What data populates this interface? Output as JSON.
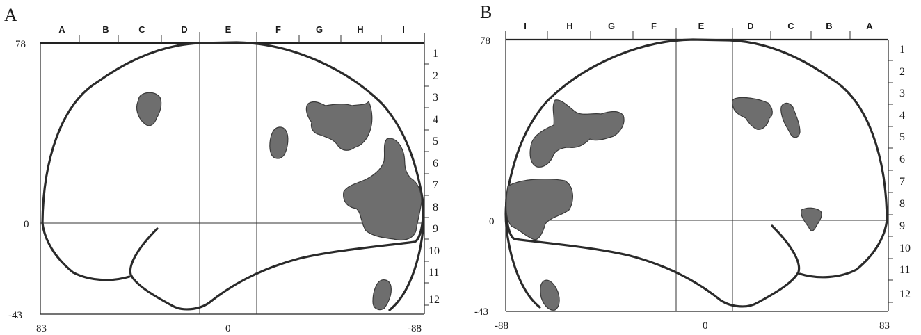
{
  "panels": [
    {
      "id": "A",
      "label": "A",
      "columns": [
        "A",
        "B",
        "C",
        "D",
        "E",
        "F",
        "G",
        "H",
        "I"
      ],
      "rows": [
        "1",
        "2",
        "3",
        "4",
        "5",
        "6",
        "7",
        "8",
        "9",
        "10",
        "11",
        "12"
      ],
      "y_top": "78",
      "y_zero": "0",
      "y_bottom": "-43",
      "x_left": "83",
      "x_zero": "0",
      "x_right": "-88"
    },
    {
      "id": "B",
      "label": "B",
      "columns": [
        "I",
        "H",
        "G",
        "F",
        "E",
        "D",
        "C",
        "B",
        "A"
      ],
      "rows": [
        "1",
        "2",
        "3",
        "4",
        "5",
        "6",
        "7",
        "8",
        "9",
        "10",
        "11",
        "12"
      ],
      "y_top": "78",
      "y_zero": "0",
      "y_bottom": "-43",
      "x_left": "-88",
      "x_zero": "0",
      "x_right": "83"
    }
  ],
  "colors": {
    "ink": "#2a2a2a",
    "activation": "#6e6e6e"
  }
}
